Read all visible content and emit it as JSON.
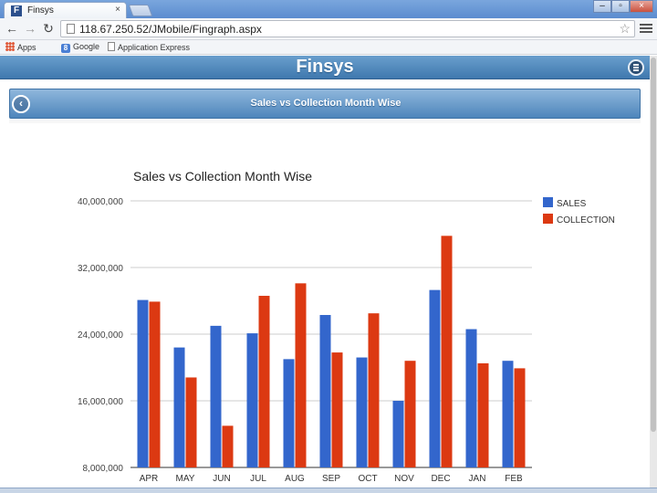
{
  "browser": {
    "tab_title": "Finsys",
    "tab_favicon_letter": "F",
    "tab_close": "×",
    "url": "118.67.250.52/JMobile/Fingraph.aspx",
    "window_controls": {
      "minimize": "–",
      "maximize": "▫",
      "close": "×"
    },
    "nav": {
      "back": "←",
      "forward": "→",
      "reload": "↻"
    },
    "bookmarks": [
      {
        "label": "Apps",
        "icon": "apps-grid-icon"
      },
      {
        "label": "Google",
        "icon": "google-icon"
      },
      {
        "label": "Application Express",
        "icon": "page-icon"
      }
    ]
  },
  "app": {
    "title": "Finsys",
    "page_title": "Sales vs Collection Month Wise",
    "back_icon": "‹"
  },
  "chart_data": {
    "type": "bar",
    "title": "Sales vs Collection Month Wise",
    "xlabel": "",
    "ylabel": "",
    "categories": [
      "APR",
      "MAY",
      "JUN",
      "JUL",
      "AUG",
      "SEP",
      "OCT",
      "NOV",
      "DEC",
      "JAN",
      "FEB"
    ],
    "series": [
      {
        "name": "SALES",
        "color": "#3366cc",
        "values": [
          28100000,
          22400000,
          25000000,
          24100000,
          21000000,
          26300000,
          21200000,
          16000000,
          29300000,
          24600000,
          20800000
        ]
      },
      {
        "name": "COLLECTION",
        "color": "#dc3912",
        "values": [
          27900000,
          18800000,
          13000000,
          28600000,
          30100000,
          21800000,
          26500000,
          20800000,
          35800000,
          20500000,
          19900000
        ]
      }
    ],
    "ylim": [
      8000000,
      40000000
    ],
    "yticks": [
      "8,000,000",
      "16,000,000",
      "24,000,000",
      "32,000,000",
      "40,000,000"
    ],
    "ytick_values": [
      8000000,
      16000000,
      24000000,
      32000000,
      40000000
    ],
    "grid": true,
    "legend_position": "right"
  }
}
